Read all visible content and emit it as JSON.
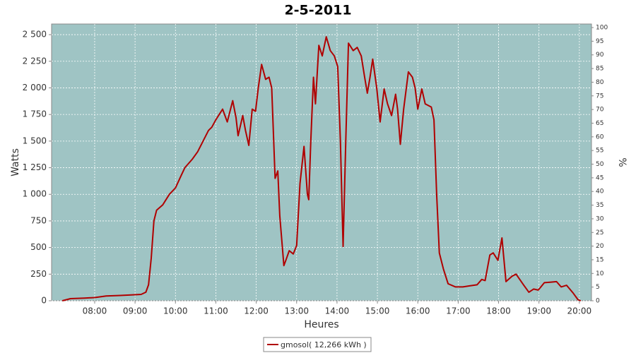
{
  "chart_data": {
    "type": "line",
    "title": "2-5-2011",
    "x_label": "Heures",
    "y_label": "Watts",
    "y2_label": "%",
    "x": [
      "07:12",
      "07:24",
      "07:45",
      "08:00",
      "08:17",
      "08:38",
      "08:54",
      "09:09",
      "09:16",
      "09:20",
      "09:24",
      "09:28",
      "09:32",
      "09:41",
      "09:51",
      "10:00",
      "10:08",
      "10:14",
      "10:25",
      "10:33",
      "10:49",
      "10:54",
      "11:00",
      "11:10",
      "11:17",
      "11:25",
      "11:30",
      "11:33",
      "11:40",
      "11:44",
      "11:49",
      "11:54",
      "11:59",
      "12:03",
      "12:08",
      "12:14",
      "12:19",
      "12:23",
      "12:28",
      "12:32",
      "12:35",
      "12:41",
      "12:44",
      "12:49",
      "12:55",
      "13:00",
      "13:05",
      "13:11",
      "13:16",
      "13:18",
      "13:21",
      "13:25",
      "13:28",
      "13:33",
      "13:38",
      "13:44",
      "13:50",
      "13:56",
      "14:01",
      "14:05",
      "14:09",
      "14:13",
      "14:17",
      "14:24",
      "14:30",
      "14:36",
      "14:41",
      "14:45",
      "14:49",
      "14:53",
      "14:59",
      "15:04",
      "15:10",
      "15:15",
      "15:21",
      "15:27",
      "15:30",
      "15:34",
      "15:39",
      "15:46",
      "15:52",
      "15:56",
      "16:00",
      "16:06",
      "16:11",
      "16:20",
      "16:24",
      "16:28",
      "16:32",
      "16:38",
      "16:45",
      "16:56",
      "17:07",
      "17:17",
      "17:28",
      "17:35",
      "17:40",
      "17:47",
      "17:52",
      "17:59",
      "18:05",
      "18:11",
      "18:20",
      "18:26",
      "18:37",
      "18:45",
      "18:52",
      "18:59",
      "19:08",
      "19:18",
      "19:26",
      "19:33",
      "19:41",
      "19:51",
      "19:58",
      "20:02"
    ],
    "series": [
      {
        "name": "gmosol( 12,266 kWh )",
        "color": "#b00000",
        "values": [
          0,
          20,
          25,
          30,
          45,
          50,
          55,
          60,
          80,
          150,
          400,
          750,
          850,
          900,
          1000,
          1060,
          1170,
          1250,
          1330,
          1400,
          1600,
          1630,
          1700,
          1800,
          1680,
          1880,
          1720,
          1550,
          1740,
          1600,
          1460,
          1800,
          1780,
          2000,
          2220,
          2080,
          2100,
          2000,
          1150,
          1220,
          800,
          330,
          380,
          470,
          440,
          520,
          1100,
          1450,
          1000,
          950,
          1500,
          2100,
          1850,
          2400,
          2300,
          2480,
          2350,
          2300,
          2200,
          1500,
          510,
          1500,
          2420,
          2350,
          2380,
          2300,
          2100,
          1950,
          2100,
          2270,
          2000,
          1680,
          1990,
          1850,
          1740,
          1940,
          1800,
          1470,
          1800,
          2150,
          2100,
          2000,
          1800,
          1990,
          1850,
          1820,
          1700,
          1000,
          450,
          300,
          160,
          130,
          130,
          140,
          150,
          200,
          190,
          430,
          450,
          380,
          590,
          180,
          230,
          250,
          150,
          80,
          110,
          100,
          170,
          175,
          180,
          130,
          145,
          70,
          10,
          0
        ]
      }
    ],
    "xlim": [
      "06:56",
      "20:18"
    ],
    "xticks": [
      "08:00",
      "09:00",
      "10:00",
      "11:00",
      "12:00",
      "13:00",
      "14:00",
      "15:00",
      "16:00",
      "17:00",
      "18:00",
      "19:00",
      "20:00"
    ],
    "ylim": [
      0,
      2600
    ],
    "yticks": [
      0,
      250,
      500,
      750,
      {
        "value": 1000,
        "label": "1 000"
      },
      {
        "value": 1250,
        "label": "1 250"
      },
      {
        "value": 1500,
        "label": "1 500"
      },
      {
        "value": 1750,
        "label": "1 750"
      },
      {
        "value": 2000,
        "label": "2 000"
      },
      {
        "value": 2250,
        "label": "2 250"
      },
      {
        "value": 2500,
        "label": "2 500"
      }
    ],
    "y2lim": [
      0,
      101.3
    ],
    "y2ticks": [
      0,
      5,
      10,
      15,
      20,
      25,
      30,
      35,
      40,
      45,
      50,
      55,
      60,
      65,
      70,
      75,
      80,
      85,
      90,
      95,
      100
    ],
    "grid": true,
    "plot_background": "#9fc4c4",
    "legend": "bottom"
  }
}
